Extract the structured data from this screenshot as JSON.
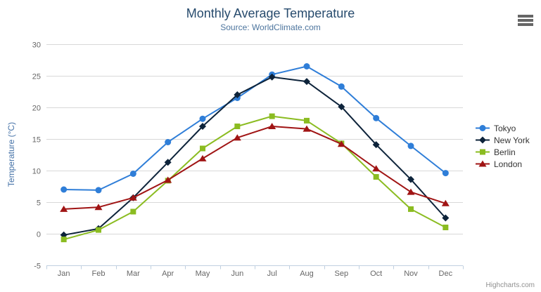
{
  "chart_data": {
    "type": "line",
    "title": "Monthly Average Temperature",
    "subtitle": "Source: WorldClimate.com",
    "xlabel": "",
    "ylabel": "Temperature (°C)",
    "categories": [
      "Jan",
      "Feb",
      "Mar",
      "Apr",
      "May",
      "Jun",
      "Jul",
      "Aug",
      "Sep",
      "Oct",
      "Nov",
      "Dec"
    ],
    "ylim": [
      -5,
      30
    ],
    "yticks": [
      -5,
      0,
      5,
      10,
      15,
      20,
      25,
      30
    ],
    "grid": true,
    "legend_position": "right-middle",
    "series": [
      {
        "name": "Tokyo",
        "color": "#2f7ed8",
        "marker": "circle",
        "values": [
          7.0,
          6.9,
          9.5,
          14.5,
          18.2,
          21.5,
          25.2,
          26.5,
          23.3,
          18.3,
          13.9,
          9.6
        ]
      },
      {
        "name": "New York",
        "color": "#0d233a",
        "marker": "diamond",
        "values": [
          -0.2,
          0.8,
          5.7,
          11.3,
          17.0,
          22.0,
          24.8,
          24.1,
          20.1,
          14.1,
          8.6,
          2.5
        ]
      },
      {
        "name": "Berlin",
        "color": "#8bbc21",
        "marker": "square",
        "values": [
          -0.9,
          0.6,
          3.5,
          8.4,
          13.5,
          17.0,
          18.6,
          17.9,
          14.3,
          9.0,
          3.9,
          1.0
        ]
      },
      {
        "name": "London",
        "color": "#a01414",
        "marker": "triangle",
        "values": [
          3.9,
          4.2,
          5.7,
          8.5,
          11.9,
          15.2,
          17.0,
          16.6,
          14.2,
          10.3,
          6.6,
          4.8
        ]
      }
    ],
    "colors": {
      "title": "#274b6d",
      "subtitle": "#4d759e",
      "axis_title": "#4572a7",
      "axis_labels": "#666666",
      "grid_line": "#d8d8d8",
      "axis_line": "#c0d0e0",
      "legend_text": "#333333"
    }
  },
  "icons": {
    "export_menu": "hamburger-icon"
  },
  "credits": "Highcharts.com"
}
